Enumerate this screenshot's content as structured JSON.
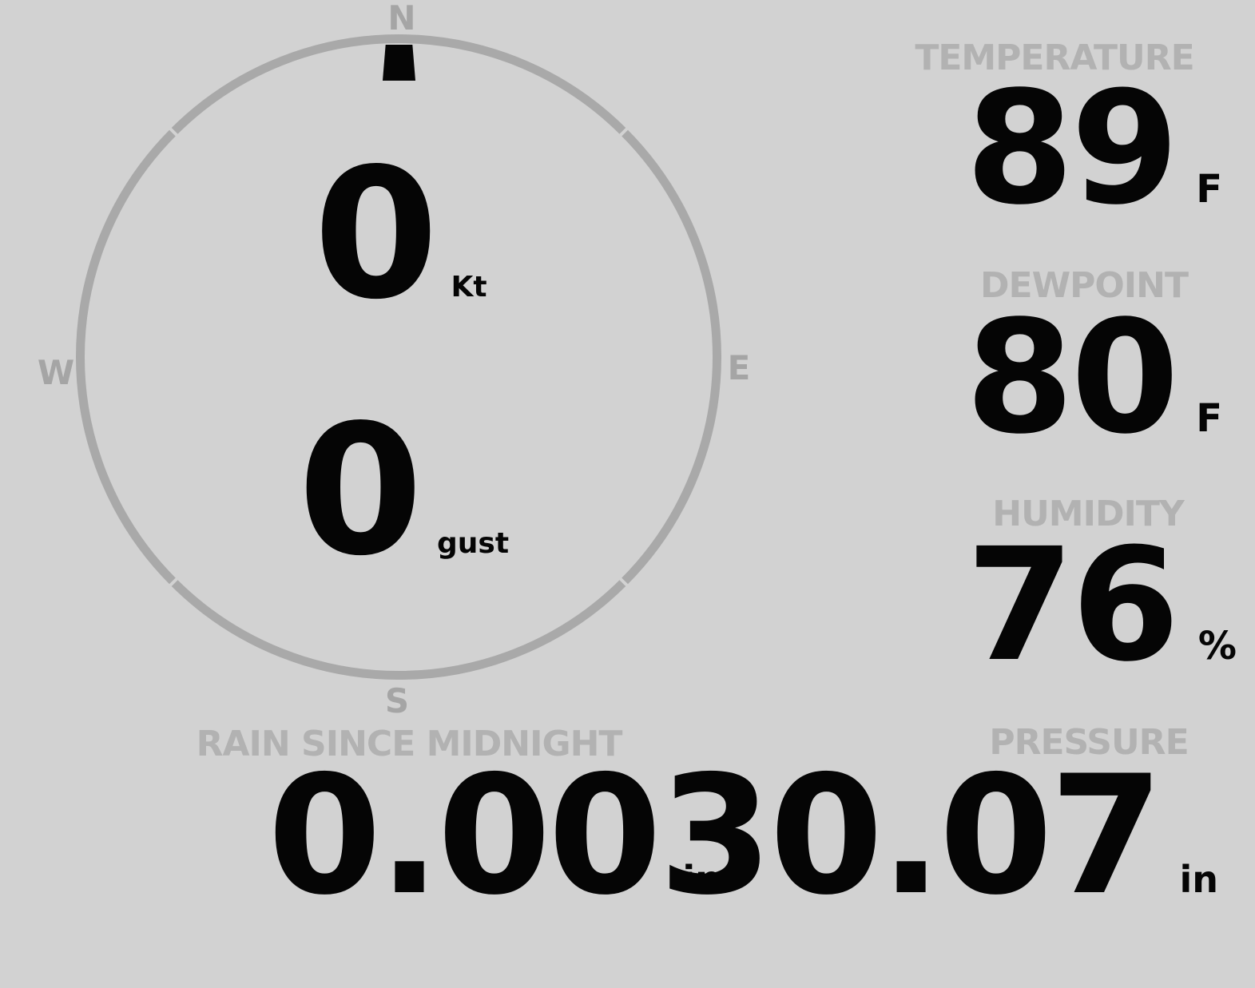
{
  "colors": {
    "background": "#d2d2d2",
    "ring": "#a9a9a9",
    "compass_letters": "#a5a5a5",
    "labels": "#b2b2b2",
    "values": "#050505"
  },
  "wind": {
    "compass": {
      "n": "N",
      "e": "E",
      "s": "S",
      "w": "W"
    },
    "direction_pointed": "N",
    "speed_value": "0",
    "speed_unit": "Kt",
    "gust_value": "0",
    "gust_unit": "gust"
  },
  "readings": {
    "temperature": {
      "label": "TEMPERATURE",
      "value": "89",
      "unit": "F"
    },
    "dewpoint": {
      "label": "DEWPOINT",
      "value": "80",
      "unit": "F"
    },
    "humidity": {
      "label": "HUMIDITY",
      "value": "76",
      "unit": "%"
    },
    "rain": {
      "label": "RAIN SINCE MIDNIGHT",
      "value": "0.00",
      "unit": "in"
    },
    "pressure": {
      "label": "PRESSURE",
      "value": "30.07",
      "unit": "in"
    }
  }
}
